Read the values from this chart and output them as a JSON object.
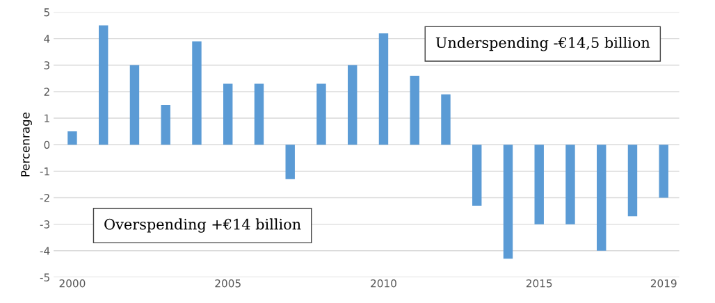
{
  "chart_data": {
    "type": "bar",
    "ylabel": "Percenrage",
    "categories": [
      "2000",
      null,
      null,
      null,
      null,
      "2005",
      null,
      null,
      null,
      null,
      "2010",
      null,
      null,
      null,
      null,
      "2015",
      null,
      null,
      null,
      "2019"
    ],
    "values": [
      0.5,
      4.5,
      3,
      1.5,
      3.9,
      2.3,
      2.3,
      -1.3,
      2.3,
      3,
      4.2,
      2.6,
      1.9,
      -2.3,
      -4.3,
      -3,
      -3,
      -4,
      -2.7,
      -2
    ],
    "color": "#5b9bd5",
    "ylim": [
      -5,
      5
    ],
    "yticks": [
      {
        "value": -5,
        "label": "-5"
      },
      {
        "value": -4,
        "label": "-4"
      },
      {
        "value": -3,
        "label": "-3"
      },
      {
        "value": -2,
        "label": "-2"
      },
      {
        "value": -1,
        "label": "-1"
      },
      0,
      1,
      2,
      3,
      4,
      5
    ],
    "grid": "y",
    "annotations": [
      "Underspending -€14,5 billion",
      "Overspending +€14 billion"
    ]
  }
}
